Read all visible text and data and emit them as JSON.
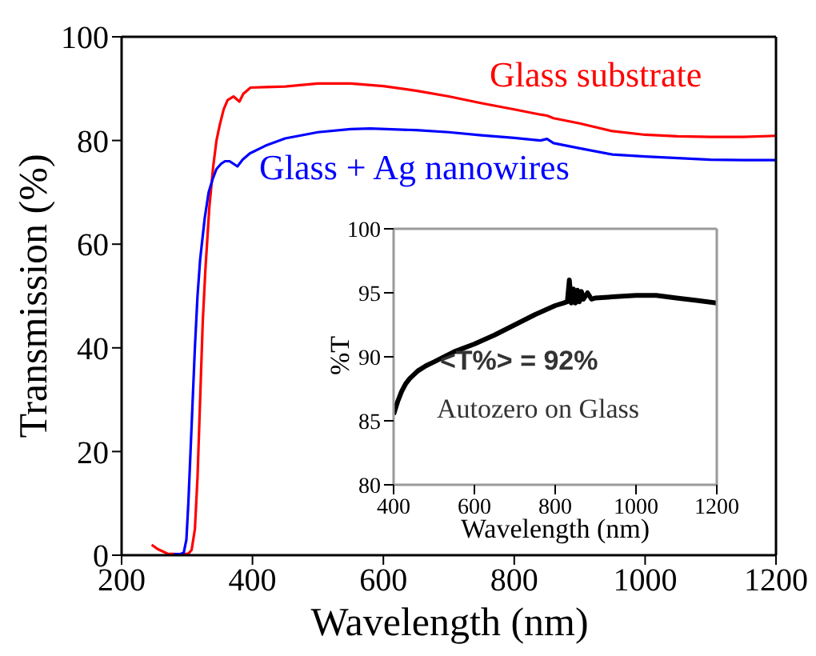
{
  "chart_data": [
    {
      "type": "line",
      "xlabel": "Wavelength (nm)",
      "ylabel": "Transmission (%)",
      "xlim": [
        200,
        1200
      ],
      "ylim": [
        0,
        100
      ],
      "xticks": [
        200,
        400,
        600,
        800,
        1000,
        1200
      ],
      "yticks": [
        0,
        20,
        40,
        60,
        80,
        100
      ],
      "marker": "none",
      "line_style": "solid",
      "series": [
        {
          "name": "Glass substrate",
          "color": "#ff0000",
          "x": [
            246,
            255,
            270,
            285,
            302,
            307,
            312,
            316,
            320,
            324,
            328,
            334,
            340,
            345,
            350,
            356,
            362,
            371,
            380,
            386,
            397,
            420,
            450,
            500,
            550,
            600,
            650,
            700,
            750,
            800,
            840,
            850,
            860,
            900,
            950,
            1000,
            1050,
            1100,
            1150,
            1200
          ],
          "values": [
            2,
            1.2,
            0.3,
            0.2,
            0.3,
            1,
            5,
            15,
            30,
            45,
            55,
            67,
            75,
            80,
            83,
            86,
            87.8,
            88.5,
            87.5,
            89,
            90.2,
            90.3,
            90.4,
            91,
            91,
            90.5,
            89.6,
            88.5,
            87.2,
            86,
            85,
            84.8,
            84.3,
            83.3,
            81.8,
            81.1,
            80.8,
            80.7,
            80.7,
            80.9
          ]
        },
        {
          "name": "Glass + Ag nanowires",
          "color": "#0000ff",
          "x": [
            280,
            290,
            295,
            299,
            302,
            307,
            312,
            316,
            320,
            327,
            333,
            339,
            345,
            352,
            358,
            365,
            371,
            377,
            385,
            396,
            420,
            450,
            500,
            550,
            580,
            650,
            700,
            750,
            800,
            840,
            850,
            860,
            900,
            950,
            1000,
            1050,
            1100,
            1150,
            1200
          ],
          "values": [
            0.2,
            0.2,
            0.5,
            3,
            10,
            25,
            40,
            50,
            57,
            65,
            70,
            72.5,
            74.5,
            75.5,
            76,
            76,
            75.5,
            75,
            76.3,
            77.5,
            79,
            80.4,
            81.6,
            82.2,
            82.3,
            82,
            81.6,
            81,
            80.5,
            80,
            80.3,
            79.5,
            78.5,
            77.3,
            76.9,
            76.6,
            76.3,
            76.2,
            76.2
          ]
        }
      ]
    },
    {
      "type": "line",
      "xlabel": "Wavelength (nm)",
      "ylabel": "%T",
      "xlim": [
        400,
        1200
      ],
      "ylim": [
        80,
        100
      ],
      "xticks": [
        400,
        600,
        800,
        1000,
        1200
      ],
      "yticks": [
        80,
        85,
        90,
        95,
        100
      ],
      "marker": "none",
      "line_style": "solid",
      "series": [
        {
          "color": "#000000",
          "x": [
            400,
            410,
            420,
            430,
            440,
            460,
            480,
            500,
            550,
            600,
            650,
            700,
            750,
            800,
            820,
            830,
            835,
            840,
            845,
            850,
            855,
            860,
            865,
            870,
            880,
            890,
            900,
            950,
            1000,
            1050,
            1100,
            1150,
            1200
          ],
          "values": [
            85.5,
            86.5,
            87.3,
            87.9,
            88.3,
            88.9,
            89.3,
            89.6,
            90.4,
            91,
            91.7,
            92.5,
            93.3,
            94,
            94.2,
            94.3,
            96,
            94.2,
            95.3,
            94.2,
            95.2,
            94.3,
            95.1,
            94.5,
            95,
            94.5,
            94.6,
            94.7,
            94.8,
            94.8,
            94.6,
            94.4,
            94.2
          ]
        }
      ],
      "annotations": [
        "<T%> = 92%",
        "Autozero on Glass"
      ]
    }
  ]
}
